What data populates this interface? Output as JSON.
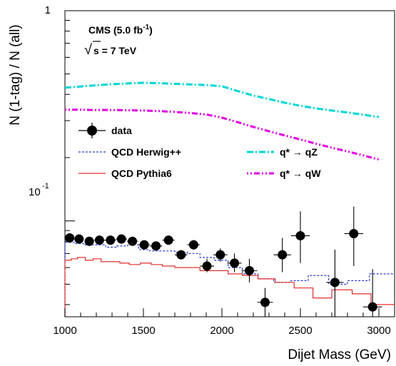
{
  "chart_data": {
    "type": "scatter",
    "xlabel": "Dijet Mass (GeV)",
    "ylabel": "N (1-tag) / N (all)",
    "xlim": [
      1000,
      3100
    ],
    "ylim": [
      0.035,
      1.0
    ],
    "yscale": "log",
    "x_ticks": [
      "1000",
      "1500",
      "2000",
      "2500",
      "3000"
    ],
    "y_ticks": {
      "top": "1",
      "mid_base": "10",
      "mid_exp": "-1"
    },
    "annotation": {
      "line1": "CMS (5.0 fb",
      "line1_sup": "-1",
      "line1_end": ")",
      "line2_sqrt": "√",
      "line2": "s = 7 TeV"
    },
    "legend": {
      "data": "data",
      "herwig": "QCD Herwig++",
      "pythia": "QCD Pythia6",
      "qz": "q* → qZ",
      "qw": "q* → qW"
    },
    "colors": {
      "data": "#000000",
      "herwig": "#2b3fd6",
      "pythia": "#e0302f",
      "qz": "#00d6d6",
      "qw": "#e000e0"
    },
    "series": [
      {
        "name": "data",
        "kind": "points",
        "x": [
          1030,
          1090,
          1155,
          1220,
          1290,
          1360,
          1430,
          1505,
          1580,
          1660,
          1740,
          1820,
          1905,
          1990,
          2080,
          2175,
          2275,
          2385,
          2500,
          2720,
          2840,
          2960
        ],
        "xerr": [
          30,
          30,
          30,
          35,
          35,
          35,
          35,
          35,
          40,
          40,
          40,
          40,
          45,
          45,
          45,
          50,
          50,
          55,
          60,
          55,
          60,
          60
        ],
        "y": [
          0.083,
          0.082,
          0.08,
          0.081,
          0.081,
          0.082,
          0.08,
          0.077,
          0.076,
          0.081,
          0.069,
          0.077,
          0.061,
          0.069,
          0.063,
          0.058,
          0.041,
          0.069,
          0.085,
          0.051,
          0.087,
          0.039
        ],
        "yerr_low": [
          0.002,
          0.002,
          0.002,
          0.002,
          0.002,
          0.002,
          0.002,
          0.002,
          0.002,
          0.002,
          0.003,
          0.004,
          0.004,
          0.005,
          0.006,
          0.007,
          0.006,
          0.012,
          0.022,
          0.018,
          0.026,
          0.016
        ],
        "yerr_high": [
          0.002,
          0.002,
          0.002,
          0.002,
          0.002,
          0.002,
          0.002,
          0.002,
          0.002,
          0.002,
          0.003,
          0.004,
          0.005,
          0.005,
          0.007,
          0.008,
          0.007,
          0.014,
          0.026,
          0.022,
          0.03,
          0.02
        ]
      },
      {
        "name": "QCD Herwig++",
        "kind": "step",
        "edges": [
          1000,
          1060,
          1120,
          1190,
          1260,
          1330,
          1400,
          1470,
          1540,
          1620,
          1700,
          1780,
          1860,
          1950,
          2040,
          2130,
          2230,
          2330,
          2440,
          2550,
          2680,
          2800,
          2940,
          3100
        ],
        "y": [
          0.079,
          0.078,
          0.077,
          0.077,
          0.075,
          0.076,
          0.077,
          0.073,
          0.072,
          0.072,
          0.071,
          0.07,
          0.067,
          0.065,
          0.06,
          0.056,
          0.053,
          0.051,
          0.052,
          0.055,
          0.05,
          0.052,
          0.056
        ]
      },
      {
        "name": "QCD Pythia6",
        "kind": "step",
        "edges": [
          1000,
          1040,
          1080,
          1130,
          1180,
          1230,
          1290,
          1350,
          1410,
          1480,
          1550,
          1620,
          1700,
          1780,
          1860,
          1950,
          2040,
          2130,
          2230,
          2340,
          2460,
          2580,
          2700,
          2830,
          2950,
          3100
        ],
        "y": [
          0.065,
          0.066,
          0.067,
          0.065,
          0.066,
          0.064,
          0.064,
          0.063,
          0.062,
          0.063,
          0.062,
          0.061,
          0.06,
          0.06,
          0.058,
          0.058,
          0.056,
          0.055,
          0.053,
          0.051,
          0.048,
          0.043,
          0.047,
          0.045,
          0.04
        ]
      },
      {
        "name": "q* → qZ",
        "kind": "curve",
        "x": [
          1000,
          1100,
          1200,
          1300,
          1400,
          1500,
          1600,
          1700,
          1800,
          1900,
          2000,
          2100,
          2200,
          2300,
          2400,
          2500,
          2600,
          2700,
          2800,
          2900,
          3000
        ],
        "y": [
          0.43,
          0.436,
          0.442,
          0.447,
          0.451,
          0.454,
          0.452,
          0.449,
          0.446,
          0.443,
          0.437,
          0.415,
          0.395,
          0.38,
          0.365,
          0.353,
          0.343,
          0.335,
          0.328,
          0.32,
          0.312
        ]
      },
      {
        "name": "q* → qW",
        "kind": "curve",
        "x": [
          1000,
          1100,
          1200,
          1300,
          1400,
          1500,
          1600,
          1700,
          1800,
          1900,
          2000,
          2100,
          2200,
          2300,
          2400,
          2500,
          2600,
          2700,
          2800,
          2900,
          3000
        ],
        "y": [
          0.338,
          0.338,
          0.337,
          0.337,
          0.336,
          0.335,
          0.333,
          0.33,
          0.326,
          0.321,
          0.31,
          0.295,
          0.28,
          0.267,
          0.255,
          0.244,
          0.233,
          0.223,
          0.214,
          0.205,
          0.196
        ]
      }
    ]
  }
}
